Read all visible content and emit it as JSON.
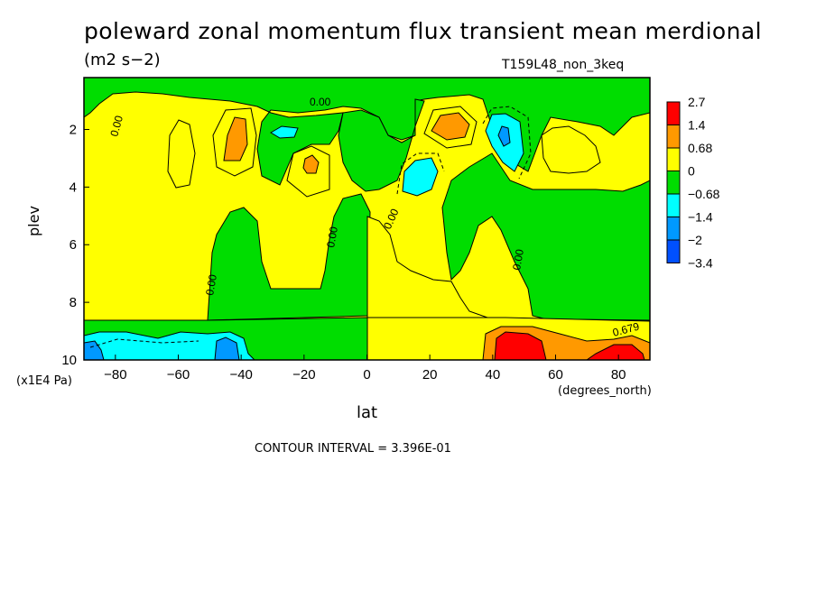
{
  "chart_data": {
    "type": "heatmap",
    "title": "poleward zonal momentum flux transient mean merdional",
    "units": "(m2 s−2)",
    "experiment": "T159L48_non_3keq",
    "xlabel": "lat",
    "xunits": "(degrees_north)",
    "ylabel": "plev",
    "yunits": "(x1E4 Pa)",
    "xlim": [
      -90,
      90
    ],
    "ylim": [
      10,
      0.2
    ],
    "x_ticks": [
      "−80",
      "−60",
      "−40",
      "−20",
      "0",
      "20",
      "40",
      "60",
      "80"
    ],
    "y_ticks": [
      "2",
      "4",
      "6",
      "8",
      "10"
    ],
    "contour_interval_text": "CONTOUR INTERVAL = 3.396E-01",
    "colorbar": {
      "labels": [
        "2.7",
        "1.4",
        "0.68",
        "0",
        "−0.68",
        "−1.4",
        "−2",
        "−3.4"
      ],
      "colors": [
        "#ff0000",
        "#ff9900",
        "#ffff00",
        "#00dd00",
        "#00ffff",
        "#0099ff",
        "#0050ff"
      ]
    },
    "contour_labels": [
      "0.00",
      "0.00",
      "0.00",
      "0.00",
      "0.00",
      "0.00",
      "0.679"
    ],
    "fields": {
      "background": "#ffff00",
      "regions": [
        {
          "level": "negative",
          "color": "#00dd00",
          "area": "upper band 0.2-1.5"
        },
        {
          "level": "negative",
          "color": "#00dd00",
          "area": "lower band 8.5-10"
        },
        {
          "level": "strong negative",
          "color": "#00ffff",
          "area": "80S-40S near 9-10"
        },
        {
          "level": "strong positive",
          "color": "#ff0000",
          "area": "40N-90N near 9-10"
        },
        {
          "level": "moderate positive",
          "color": "#ff9900",
          "area": "40S and 25N near 2"
        }
      ]
    }
  }
}
